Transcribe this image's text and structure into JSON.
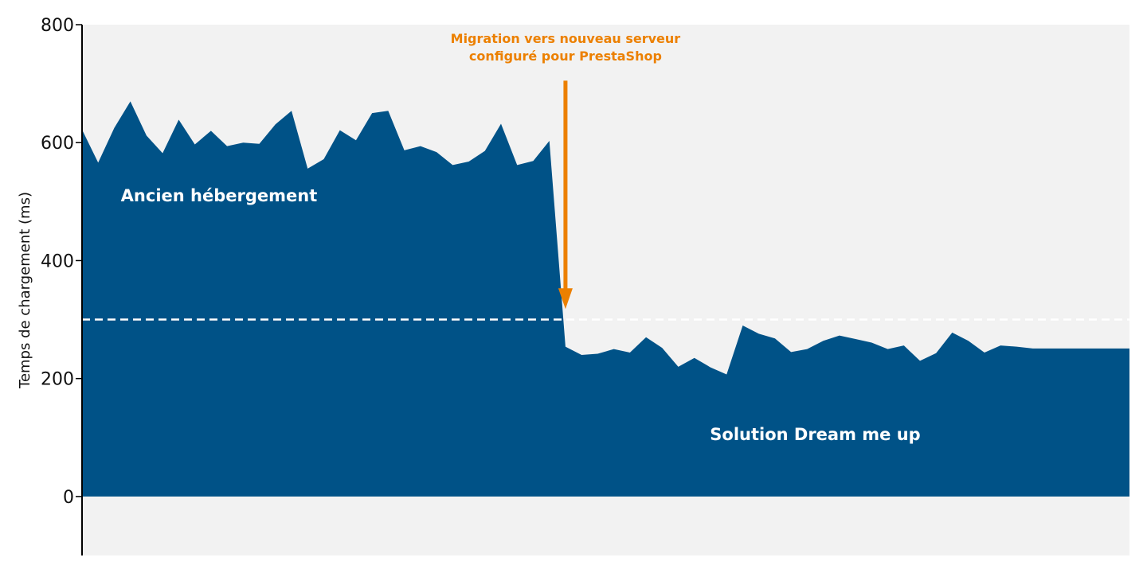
{
  "chart_data": {
    "type": "area",
    "title": "",
    "xlabel": "",
    "ylabel": "Temps de chargement (ms)",
    "ylim": [
      -100,
      800
    ],
    "yticks": [
      0,
      200,
      400,
      600,
      800
    ],
    "xlim": [
      0,
      65
    ],
    "grid": false,
    "legend": "none",
    "threshold": 300,
    "series": [
      {
        "values": [
          622,
          566,
          625,
          670,
          612,
          582,
          639,
          597,
          620,
          594,
          600,
          598,
          631,
          654,
          556,
          572,
          621,
          604,
          650,
          654,
          587,
          594,
          584,
          562,
          568,
          586,
          632,
          562,
          569,
          603,
          254,
          240,
          242,
          250,
          244,
          270,
          252,
          220,
          235,
          219,
          207,
          290,
          276,
          268,
          245,
          250,
          264,
          273,
          267,
          261,
          250,
          256,
          230,
          243,
          278,
          264,
          244,
          256,
          254,
          251,
          251,
          251,
          251,
          251,
          251,
          251
        ]
      }
    ],
    "regions": [
      {
        "label": "Ancien hébergement",
        "x": 8.5,
        "y": 510
      },
      {
        "label": "Solution Dream me up",
        "x": 45.5,
        "y": 105
      }
    ],
    "annotation": {
      "lines": [
        "Migration vers nouveau serveur",
        "configuré pour PrestaShop"
      ],
      "x": 30.0,
      "arrow_from": 705,
      "arrow_to": 318
    },
    "colors": {
      "area": "#005287",
      "background": "#f2f2f2",
      "annotation": "#ec8000",
      "threshold": "#ffffff",
      "axis": "#000000"
    }
  }
}
